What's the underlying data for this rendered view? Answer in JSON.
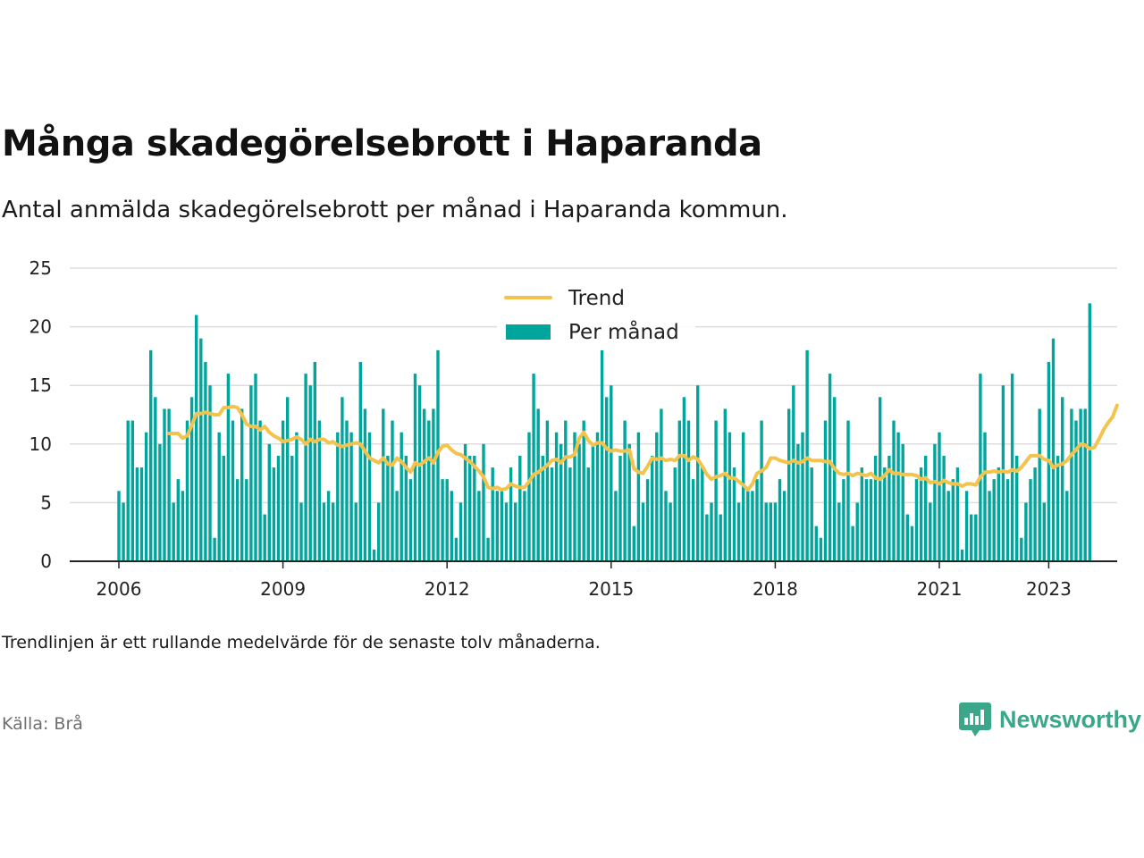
{
  "title": "Många skadegörelsebrott i Haparanda",
  "subtitle": "Antal anmälda skadegörelsebrott per månad i Haparanda kommun.",
  "note": "Trendlinjen är ett rullande medelvärde för de senaste tolv månaderna.",
  "source": "Källa: Brå",
  "brand": "Newsworthy",
  "colors": {
    "bar": "#00a69c",
    "trend": "#f4c34e",
    "brand": "#3aa68a",
    "grid": "#dddddd"
  },
  "chart_data": {
    "type": "bar",
    "title": "Många skadegörelsebrott i Haparanda",
    "subtitle": "Antal anmälda skadegörelsebrott per månad i Haparanda kommun.",
    "xlabel": "",
    "ylabel": "",
    "x_start": "2006-01",
    "ylim": [
      0,
      25
    ],
    "yticks": [
      0,
      5,
      10,
      15,
      20,
      25
    ],
    "xticks": [
      "2006",
      "2009",
      "2012",
      "2015",
      "2018",
      "2021",
      "2023"
    ],
    "grid": true,
    "legend_position": "top-center",
    "series": [
      {
        "name": "Per månad",
        "type": "bar",
        "color": "#00a69c",
        "values": [
          6,
          5,
          12,
          12,
          8,
          8,
          11,
          18,
          14,
          10,
          13,
          13,
          5,
          7,
          6,
          12,
          14,
          21,
          19,
          17,
          15,
          2,
          11,
          9,
          16,
          12,
          7,
          13,
          7,
          15,
          16,
          12,
          4,
          10,
          8,
          9,
          12,
          14,
          9,
          11,
          5,
          16,
          15,
          17,
          12,
          5,
          6,
          5,
          11,
          14,
          12,
          11,
          5,
          17,
          13,
          11,
          1,
          5,
          13,
          9,
          12,
          6,
          11,
          9,
          7,
          16,
          15,
          13,
          12,
          13,
          18,
          7,
          7,
          6,
          2,
          5,
          10,
          9,
          9,
          6,
          10,
          2,
          8,
          6,
          6,
          5,
          8,
          5,
          9,
          6,
          11,
          16,
          13,
          9,
          12,
          8,
          11,
          10,
          12,
          8,
          11,
          10,
          12,
          8,
          10,
          11,
          18,
          14,
          15,
          6,
          9,
          12,
          10,
          3,
          11,
          5,
          7,
          9,
          11,
          13,
          6,
          5,
          8,
          12,
          14,
          12,
          7,
          15,
          8,
          4,
          5,
          12,
          4,
          13,
          11,
          8,
          5,
          11,
          6,
          6,
          7,
          12,
          5,
          5,
          5,
          7,
          6,
          13,
          15,
          10,
          11,
          18,
          8,
          3,
          2,
          12,
          16,
          14,
          5,
          7,
          12,
          3,
          5,
          8,
          7,
          7,
          9,
          14,
          8,
          9,
          12,
          11,
          10,
          4,
          3,
          7,
          8,
          9,
          5,
          10,
          11,
          9,
          6,
          7,
          8,
          1,
          6,
          4,
          4,
          16,
          11,
          6,
          7,
          8,
          15,
          7,
          16,
          9,
          2,
          5,
          7,
          8,
          13,
          5,
          17,
          19,
          9,
          14,
          6,
          13,
          12,
          13,
          13,
          22
        ]
      },
      {
        "name": "Trend",
        "type": "line",
        "color": "#f4c34e",
        "start": "2006-12",
        "values": [
          10.9,
          10.9,
          10.9,
          10.5,
          10.7,
          11.6,
          12.6,
          12.6,
          12.7,
          12.6,
          12.5,
          12.5,
          13.1,
          13.1,
          13.2,
          13.1,
          12.5,
          11.7,
          11.5,
          11.5,
          11.2,
          11.5,
          11.0,
          10.7,
          10.5,
          10.2,
          10.3,
          10.4,
          10.6,
          10.4,
          10.0,
          10.4,
          10.2,
          10.4,
          10.4,
          10.1,
          10.2,
          9.9,
          9.8,
          9.9,
          10.0,
          10.1,
          10.0,
          9.4,
          8.8,
          8.6,
          8.4,
          8.8,
          8.3,
          8.2,
          8.8,
          8.5,
          8.0,
          7.6,
          8.4,
          8.2,
          8.5,
          8.8,
          8.4,
          9.3,
          9.8,
          9.9,
          9.5,
          9.2,
          9.1,
          8.8,
          8.5,
          8.1,
          7.7,
          7.2,
          6.3,
          6.2,
          6.3,
          6.1,
          6.2,
          6.6,
          6.4,
          6.3,
          6.3,
          6.8,
          7.4,
          7.6,
          7.9,
          8.2,
          8.6,
          8.7,
          8.4,
          8.9,
          8.9,
          9.1,
          10.5,
          11.0,
          10.3,
          9.9,
          10.1,
          10.1,
          9.6,
          9.4,
          9.5,
          9.4,
          9.4,
          9.5,
          7.9,
          7.6,
          7.5,
          8.1,
          8.8,
          8.7,
          8.8,
          8.6,
          8.7,
          8.6,
          9.0,
          9.0,
          8.6,
          8.9,
          8.7,
          8.1,
          7.4,
          7.0,
          7.2,
          7.3,
          7.5,
          7.1,
          7.1,
          6.8,
          6.5,
          6.1,
          6.6,
          7.5,
          7.7,
          8.0,
          8.8,
          8.8,
          8.6,
          8.5,
          8.4,
          8.6,
          8.4,
          8.5,
          8.8,
          8.6,
          8.6,
          8.6,
          8.5,
          8.5,
          7.9,
          7.5,
          7.4,
          7.5,
          7.3,
          7.5,
          7.4,
          7.3,
          7.5,
          7.1,
          7.0,
          7.3,
          7.8,
          7.5,
          7.5,
          7.4,
          7.4,
          7.4,
          7.3,
          7.0,
          7.1,
          6.7,
          6.8,
          6.6,
          6.9,
          6.7,
          6.6,
          6.6,
          6.4,
          6.6,
          6.6,
          6.5,
          7.2,
          7.6,
          7.6,
          7.7,
          7.6,
          7.7,
          7.6,
          7.8,
          7.7,
          8.0,
          8.5,
          9.0,
          9.0,
          9.0,
          8.7,
          8.6,
          8.0,
          8.2,
          8.3,
          8.6,
          9.1,
          9.5,
          10.0,
          9.9,
          9.6,
          9.7,
          10.4,
          11.2,
          11.8,
          12.3,
          13.3
        ]
      }
    ]
  }
}
